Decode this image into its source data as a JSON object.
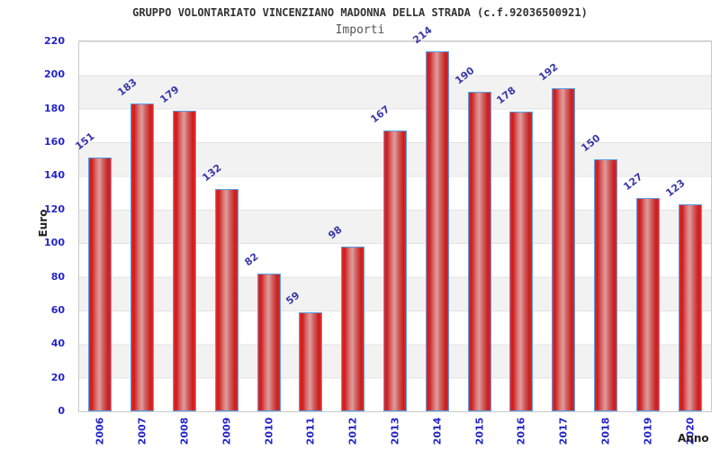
{
  "chart_data": {
    "type": "bar",
    "title": "GRUPPO VOLONTARIATO VINCENZIANO MADONNA DELLA STRADA (c.f.92036500921)",
    "subtitle": "Importi",
    "xlabel": "Anno",
    "ylabel": "Euro",
    "categories": [
      "2006",
      "2007",
      "2008",
      "2009",
      "2010",
      "2011",
      "2012",
      "2013",
      "2014",
      "2015",
      "2016",
      "2017",
      "2018",
      "2019",
      "2020"
    ],
    "values": [
      151,
      183,
      179,
      132,
      82,
      59,
      98,
      167,
      214,
      190,
      178,
      192,
      150,
      127,
      123
    ],
    "yticks": [
      0,
      20,
      40,
      60,
      80,
      100,
      120,
      140,
      160,
      180,
      200,
      220
    ],
    "ylim": [
      0,
      220
    ],
    "grid": "horizontal alternating bands every 20 units",
    "legend": "none",
    "value_labels": "rotated diagonal above each bar",
    "x_tick_rotation": -90,
    "colors": {
      "bar_fill_edge": "#ee2424",
      "bar_fill_center": "#dc9e9e",
      "bar_border": "#55a0e6",
      "axis_text": "#2424cc",
      "value_label_text": "#3838a8",
      "band_gray": "#f2f2f2",
      "gridline": "#e3e3e3",
      "title_text": "#333333",
      "subtitle_text": "#555555",
      "axis_title_text": "#222222",
      "background": "#ffffff"
    }
  }
}
